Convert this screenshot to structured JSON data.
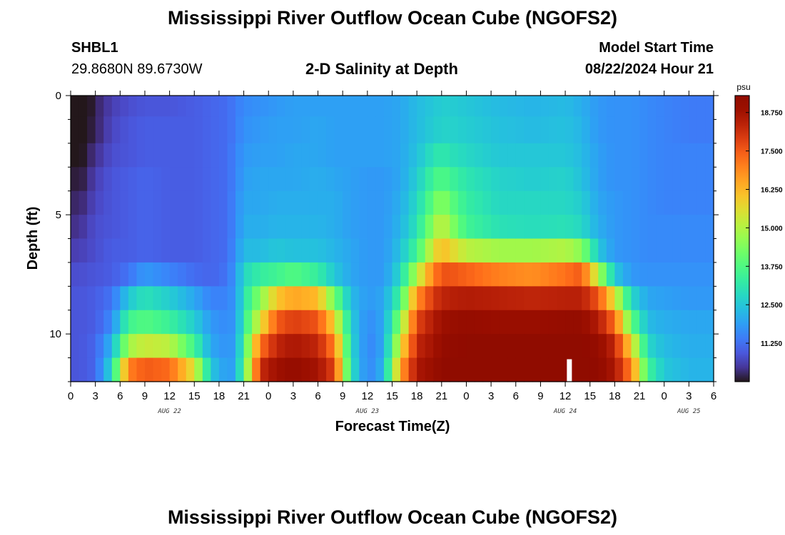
{
  "header": {
    "title": "Mississippi River Outflow Ocean Cube (NGOFS2)",
    "station": "SHBL1",
    "coords": "29.8680N  89.6730W",
    "subtitle": "2-D Salinity at Depth",
    "start_label": "Model Start Time",
    "start_value": "08/22/2024 Hour 21"
  },
  "footer": {
    "title": "Mississippi River Outflow Ocean Cube (NGOFS2)"
  },
  "colors": {
    "page_bg": "#ffffff",
    "missing": "#ffffff"
  },
  "chart_data": {
    "type": "heatmap",
    "title": "2-D Salinity at Depth",
    "xlabel": "Forecast Time(Z)",
    "ylabel": "Depth (ft)",
    "x_hours": [
      0,
      78
    ],
    "x_tick_step_hours": 3,
    "x_tick_labels": [
      "0",
      "3",
      "6",
      "9",
      "12",
      "15",
      "18",
      "21",
      "0",
      "3",
      "6",
      "9",
      "12",
      "15",
      "18",
      "21",
      "0",
      "3",
      "6",
      "9",
      "12",
      "15",
      "18",
      "21",
      "0",
      "3",
      "6"
    ],
    "day_labels": [
      {
        "hour": 12,
        "label": "AUG 22"
      },
      {
        "hour": 36,
        "label": "AUG 23"
      },
      {
        "hour": 60,
        "label": "AUG 24"
      },
      {
        "hour": 75,
        "label": "AUG 25"
      }
    ],
    "depth_range_ft": [
      0,
      12
    ],
    "y_ticks": [
      0,
      5,
      10
    ],
    "colorbar": {
      "unit": "psu",
      "range": [
        10.0,
        19.3
      ],
      "ticks": [
        11.25,
        12.5,
        13.75,
        15.0,
        16.25,
        17.5,
        18.75
      ],
      "tick_labels": [
        "11.250",
        "12.500",
        "13.750",
        "15.000",
        "16.250",
        "17.500",
        "18.750"
      ]
    },
    "time_columns": 78,
    "depth_levels_ft": [
      0.25,
      1.5,
      2.5,
      3.5,
      4.5,
      5.5,
      6.5,
      7.5,
      8.5,
      9.5,
      10.5,
      11.5
    ],
    "salinity_keyframes": [
      {
        "hour": 0,
        "values": [
          10.0,
          10.0,
          10.1,
          10.2,
          10.3,
          10.4,
          10.6,
          10.8,
          10.9,
          10.9,
          10.9,
          10.9
        ]
      },
      {
        "hour": 1,
        "values": [
          9.6,
          9.8,
          9.9,
          10.0,
          10.2,
          10.4,
          10.6,
          10.8,
          10.9,
          10.9,
          10.9,
          10.9
        ]
      },
      {
        "hour": 3,
        "values": [
          10.2,
          10.2,
          10.4,
          10.6,
          10.7,
          10.8,
          10.8,
          10.9,
          11.0,
          11.0,
          11.1,
          11.1
        ]
      },
      {
        "hour": 5,
        "values": [
          10.6,
          10.7,
          10.8,
          10.9,
          10.9,
          10.9,
          11.0,
          11.0,
          11.3,
          11.6,
          12.2,
          12.8
        ]
      },
      {
        "hour": 7,
        "values": [
          10.8,
          10.9,
          10.9,
          11.0,
          11.0,
          11.0,
          11.0,
          11.3,
          12.5,
          13.5,
          14.8,
          17.0
        ]
      },
      {
        "hour": 9,
        "values": [
          10.9,
          11.0,
          11.0,
          11.1,
          11.1,
          11.1,
          11.1,
          11.8,
          13.0,
          13.8,
          15.3,
          17.5
        ]
      },
      {
        "hour": 12,
        "values": [
          10.9,
          11.0,
          11.0,
          11.0,
          11.0,
          11.0,
          11.0,
          11.5,
          12.6,
          13.4,
          15.1,
          17.3
        ]
      },
      {
        "hour": 15,
        "values": [
          11.0,
          11.0,
          11.0,
          11.0,
          11.0,
          11.0,
          11.0,
          11.2,
          12.0,
          12.6,
          13.5,
          15.5
        ]
      },
      {
        "hour": 17,
        "values": [
          11.1,
          11.1,
          11.1,
          11.1,
          11.1,
          11.1,
          11.1,
          11.1,
          11.5,
          11.8,
          12.0,
          12.5
        ]
      },
      {
        "hour": 19,
        "values": [
          11.2,
          11.2,
          11.2,
          11.2,
          11.2,
          11.2,
          11.2,
          11.3,
          11.5,
          11.6,
          11.7,
          11.8
        ]
      },
      {
        "hour": 20,
        "values": [
          11.4,
          11.4,
          11.5,
          11.5,
          11.6,
          11.6,
          11.7,
          11.8,
          11.8,
          11.8,
          11.9,
          12.0
        ]
      },
      {
        "hour": 21,
        "values": [
          11.6,
          11.7,
          11.8,
          11.9,
          12.0,
          12.1,
          12.3,
          12.8,
          13.0,
          13.2,
          13.5,
          13.8
        ]
      },
      {
        "hour": 23,
        "values": [
          11.7,
          11.8,
          11.9,
          12.0,
          12.0,
          12.1,
          12.3,
          13.3,
          14.5,
          15.5,
          17.2,
          18.2
        ]
      },
      {
        "hour": 25,
        "values": [
          11.8,
          11.9,
          11.9,
          12.0,
          12.1,
          12.2,
          12.5,
          13.5,
          16.0,
          17.5,
          18.3,
          18.8
        ]
      },
      {
        "hour": 27,
        "values": [
          11.9,
          11.9,
          12.0,
          12.0,
          12.1,
          12.2,
          12.4,
          13.8,
          16.5,
          17.9,
          18.6,
          19.0
        ]
      },
      {
        "hour": 30,
        "values": [
          11.9,
          12.0,
          12.0,
          12.1,
          12.1,
          12.2,
          12.4,
          13.3,
          16.2,
          17.6,
          18.3,
          18.7
        ]
      },
      {
        "hour": 32,
        "values": [
          11.9,
          11.9,
          11.9,
          12.0,
          12.1,
          12.1,
          12.2,
          12.5,
          14.2,
          15.8,
          17.0,
          17.8
        ]
      },
      {
        "hour": 34,
        "values": [
          11.9,
          11.9,
          11.9,
          11.9,
          11.9,
          11.9,
          12.0,
          12.0,
          12.3,
          12.6,
          12.8,
          13.0
        ]
      },
      {
        "hour": 36,
        "values": [
          11.9,
          11.9,
          11.9,
          11.8,
          11.8,
          11.8,
          11.8,
          11.8,
          11.8,
          11.6,
          11.5,
          11.5
        ]
      },
      {
        "hour": 38,
        "values": [
          11.9,
          11.9,
          11.9,
          11.8,
          11.8,
          11.8,
          11.8,
          11.8,
          12.0,
          12.0,
          12.0,
          12.2
        ]
      },
      {
        "hour": 40,
        "values": [
          12.0,
          12.0,
          12.0,
          12.0,
          12.1,
          12.2,
          12.4,
          12.8,
          13.5,
          14.5,
          15.5,
          16.5
        ]
      },
      {
        "hour": 42,
        "values": [
          12.3,
          12.3,
          12.4,
          12.6,
          12.8,
          13.0,
          13.5,
          15.0,
          16.8,
          17.8,
          18.3,
          18.6
        ]
      },
      {
        "hour": 44,
        "values": [
          12.5,
          12.6,
          13.0,
          13.5,
          14.0,
          14.6,
          15.5,
          17.0,
          18.0,
          18.5,
          18.7,
          18.9
        ]
      },
      {
        "hour": 45,
        "values": [
          12.6,
          12.7,
          13.2,
          13.8,
          14.6,
          15.3,
          16.2,
          17.6,
          18.3,
          18.8,
          19.0,
          19.1
        ]
      },
      {
        "hour": 46,
        "values": [
          12.6,
          12.7,
          13.0,
          13.5,
          14.0,
          14.6,
          15.8,
          17.6,
          18.4,
          18.9,
          19.1,
          19.2
        ]
      },
      {
        "hour": 48,
        "values": [
          12.5,
          12.6,
          12.8,
          13.1,
          13.3,
          13.5,
          15.1,
          17.4,
          18.5,
          19.0,
          19.2,
          19.3
        ]
      },
      {
        "hour": 52,
        "values": [
          12.3,
          12.4,
          12.5,
          12.7,
          12.8,
          13.0,
          14.8,
          17.0,
          18.4,
          18.9,
          19.2,
          19.3
        ]
      },
      {
        "hour": 56,
        "values": [
          12.2,
          12.3,
          12.5,
          12.6,
          12.8,
          12.9,
          14.8,
          16.8,
          18.3,
          18.9,
          19.2,
          19.3
        ]
      },
      {
        "hour": 60,
        "values": [
          12.3,
          12.4,
          12.5,
          12.7,
          12.8,
          13.0,
          15.0,
          17.2,
          18.4,
          19.0,
          19.2,
          19.3
        ]
      },
      {
        "hour": 62,
        "values": [
          12.1,
          12.2,
          12.3,
          12.4,
          12.6,
          12.8,
          14.5,
          17.5,
          18.4,
          19.0,
          19.2,
          19.3
        ]
      },
      {
        "hour": 64,
        "values": [
          11.8,
          11.8,
          11.9,
          11.9,
          12.0,
          12.1,
          12.5,
          15.0,
          17.6,
          18.5,
          19.0,
          19.1
        ]
      },
      {
        "hour": 66,
        "values": [
          11.7,
          11.7,
          11.7,
          11.7,
          11.8,
          11.8,
          11.8,
          12.5,
          15.5,
          17.3,
          18.3,
          18.6
        ]
      },
      {
        "hour": 68,
        "values": [
          11.7,
          11.7,
          11.7,
          11.7,
          11.7,
          11.7,
          11.7,
          11.8,
          12.8,
          14.0,
          15.8,
          17.0
        ]
      },
      {
        "hour": 70,
        "values": [
          11.6,
          11.6,
          11.6,
          11.6,
          11.6,
          11.6,
          11.6,
          11.7,
          12.0,
          12.3,
          12.8,
          13.5
        ]
      },
      {
        "hour": 72,
        "values": [
          11.5,
          11.5,
          11.5,
          11.5,
          11.5,
          11.6,
          11.6,
          11.7,
          11.9,
          12.1,
          12.3,
          12.5
        ]
      },
      {
        "hour": 75,
        "values": [
          11.4,
          11.4,
          11.5,
          11.5,
          11.5,
          11.6,
          11.6,
          11.7,
          11.8,
          12.0,
          12.1,
          12.2
        ]
      },
      {
        "hour": 78,
        "values": [
          11.4,
          11.4,
          11.5,
          11.5,
          11.5,
          11.6,
          11.6,
          11.7,
          11.8,
          12.0,
          12.1,
          12.2
        ]
      }
    ],
    "missing_cell": {
      "hour": 60.5,
      "depth_level": 11
    }
  }
}
